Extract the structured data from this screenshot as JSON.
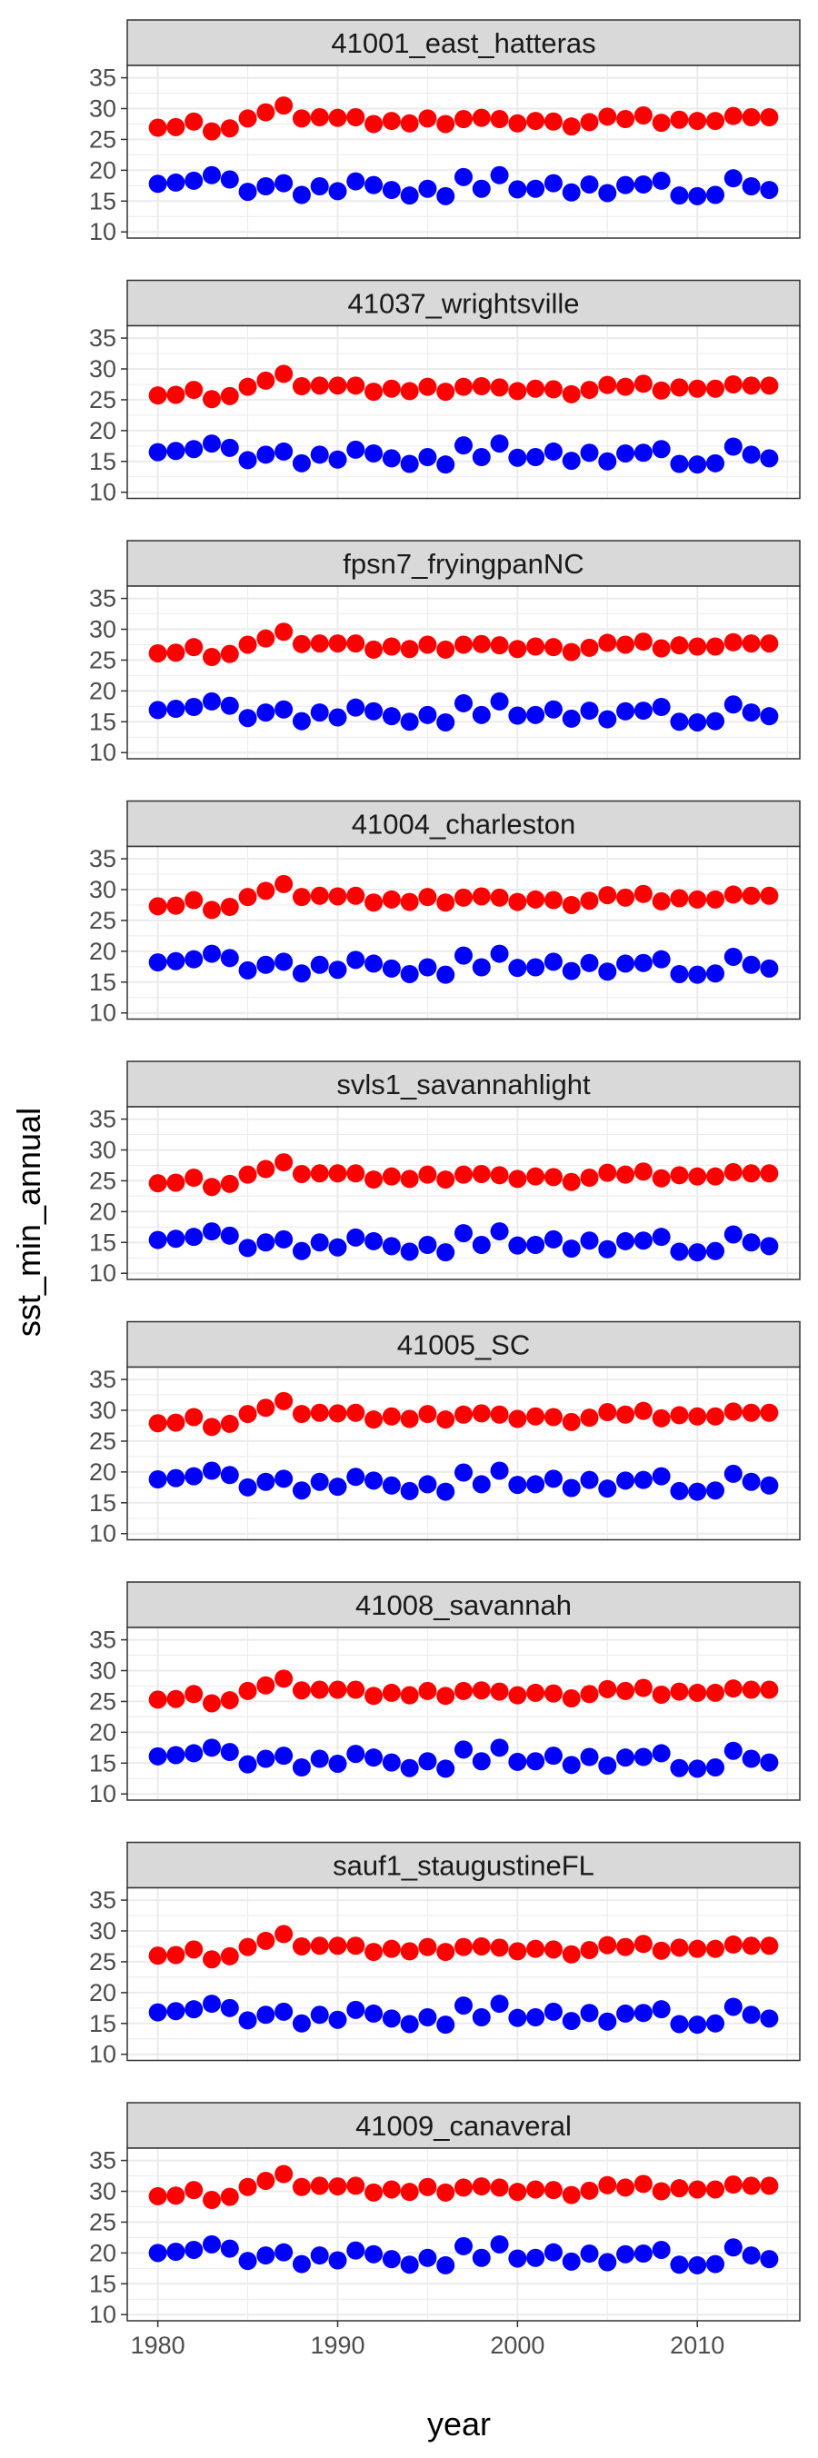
{
  "chart_data": {
    "type": "scatter",
    "xlabel": "year",
    "ylabel": "sst_min_annual",
    "xlim": [
      1978.3,
      2015.7
    ],
    "ylim": [
      9,
      37
    ],
    "x_ticks": [
      1980,
      1990,
      2000,
      2010
    ],
    "y_ticks": [
      10,
      15,
      20,
      25,
      30,
      35
    ],
    "grid": true,
    "legend": "none",
    "colors": {
      "high_series": "#ff0000",
      "low_series": "#0000ff",
      "strip_fill": "#d9d9d9",
      "panel_border": "#333333",
      "grid": "#ebebeb"
    },
    "x": [
      1980,
      1981,
      1982,
      1983,
      1984,
      1985,
      1986,
      1987,
      1988,
      1989,
      1990,
      1991,
      1992,
      1993,
      1994,
      1995,
      1996,
      1997,
      1998,
      1999,
      2000,
      2001,
      2002,
      2003,
      2004,
      2005,
      2006,
      2007,
      2008,
      2009,
      2010,
      2011,
      2012,
      2013,
      2014
    ],
    "panels": [
      {
        "strip": "41001_east_hatteras",
        "high": [
          26.9,
          27.0,
          27.9,
          26.3,
          26.8,
          28.4,
          29.4,
          30.5,
          28.4,
          28.6,
          28.5,
          28.6,
          27.5,
          28.0,
          27.6,
          28.4,
          27.5,
          28.3,
          28.5,
          28.3,
          27.6,
          28.0,
          27.9,
          27.1,
          27.8,
          28.7,
          28.3,
          28.9,
          27.7,
          28.2,
          28.0,
          28.0,
          28.8,
          28.6,
          28.6
        ],
        "low": [
          17.8,
          18.0,
          18.3,
          19.2,
          18.5,
          16.5,
          17.4,
          17.9,
          16.0,
          17.4,
          16.6,
          18.2,
          17.6,
          16.8,
          15.9,
          17.0,
          15.8,
          18.9,
          17.0,
          19.2,
          16.9,
          17.0,
          17.9,
          16.4,
          17.7,
          16.3,
          17.6,
          17.7,
          18.3,
          15.9,
          15.8,
          16.0,
          18.7,
          17.4,
          16.8
        ]
      },
      {
        "strip": "41037_wrightsville",
        "high": [
          25.7,
          25.8,
          26.6,
          25.1,
          25.6,
          27.1,
          28.1,
          29.2,
          27.2,
          27.3,
          27.3,
          27.3,
          26.3,
          26.8,
          26.4,
          27.1,
          26.3,
          27.1,
          27.2,
          27.0,
          26.4,
          26.8,
          26.7,
          25.9,
          26.6,
          27.4,
          27.1,
          27.6,
          26.5,
          27.0,
          26.8,
          26.8,
          27.5,
          27.3,
          27.3
        ],
        "low": [
          16.5,
          16.7,
          17.0,
          17.9,
          17.2,
          15.2,
          16.1,
          16.6,
          14.7,
          16.1,
          15.3,
          16.9,
          16.3,
          15.5,
          14.6,
          15.7,
          14.5,
          17.6,
          15.7,
          17.9,
          15.6,
          15.7,
          16.6,
          15.1,
          16.4,
          15.0,
          16.3,
          16.4,
          17.0,
          14.6,
          14.5,
          14.7,
          17.4,
          16.1,
          15.5
        ]
      },
      {
        "strip": "fpsn7_fryingpanNC",
        "high": [
          26.1,
          26.2,
          27.1,
          25.5,
          26.0,
          27.5,
          28.5,
          29.6,
          27.6,
          27.7,
          27.7,
          27.7,
          26.7,
          27.2,
          26.8,
          27.5,
          26.7,
          27.5,
          27.6,
          27.4,
          26.8,
          27.2,
          27.1,
          26.3,
          27.0,
          27.8,
          27.5,
          28.0,
          26.9,
          27.4,
          27.2,
          27.2,
          27.9,
          27.7,
          27.7
        ],
        "low": [
          16.9,
          17.1,
          17.4,
          18.3,
          17.6,
          15.6,
          16.5,
          17.0,
          15.1,
          16.5,
          15.7,
          17.3,
          16.7,
          15.9,
          15.0,
          16.1,
          14.9,
          18.0,
          16.1,
          18.3,
          16.0,
          16.1,
          17.0,
          15.5,
          16.8,
          15.4,
          16.7,
          16.8,
          17.4,
          15.0,
          14.9,
          15.1,
          17.8,
          16.5,
          15.9
        ]
      },
      {
        "strip": "41004_charleston",
        "high": [
          27.3,
          27.4,
          28.3,
          26.7,
          27.2,
          28.8,
          29.8,
          30.9,
          28.8,
          29.0,
          28.9,
          29.0,
          27.9,
          28.4,
          28.0,
          28.8,
          27.9,
          28.7,
          28.9,
          28.7,
          28.0,
          28.4,
          28.3,
          27.5,
          28.2,
          29.1,
          28.7,
          29.3,
          28.1,
          28.6,
          28.4,
          28.4,
          29.2,
          29.0,
          29.0
        ],
        "low": [
          18.2,
          18.4,
          18.7,
          19.6,
          18.9,
          16.9,
          17.8,
          18.3,
          16.4,
          17.8,
          17.0,
          18.6,
          18.0,
          17.2,
          16.3,
          17.4,
          16.2,
          19.3,
          17.4,
          19.6,
          17.3,
          17.4,
          18.3,
          16.8,
          18.1,
          16.7,
          18.0,
          18.1,
          18.7,
          16.3,
          16.2,
          16.4,
          19.1,
          17.8,
          17.2
        ]
      },
      {
        "strip": "svls1_savannahlight",
        "high": [
          24.6,
          24.7,
          25.5,
          24.0,
          24.5,
          26.0,
          26.9,
          28.0,
          26.1,
          26.2,
          26.2,
          26.2,
          25.2,
          25.7,
          25.3,
          26.0,
          25.2,
          26.0,
          26.1,
          25.9,
          25.3,
          25.7,
          25.6,
          24.8,
          25.5,
          26.3,
          26.0,
          26.5,
          25.4,
          25.9,
          25.7,
          25.7,
          26.4,
          26.2,
          26.2
        ],
        "low": [
          15.4,
          15.6,
          15.9,
          16.8,
          16.1,
          14.1,
          15.0,
          15.5,
          13.6,
          15.0,
          14.2,
          15.8,
          15.2,
          14.4,
          13.5,
          14.6,
          13.4,
          16.5,
          14.6,
          16.8,
          14.5,
          14.6,
          15.5,
          14.0,
          15.3,
          13.9,
          15.2,
          15.3,
          15.9,
          13.5,
          13.4,
          13.6,
          16.3,
          15.0,
          14.4
        ]
      },
      {
        "strip": "41005_SC",
        "high": [
          27.9,
          28.0,
          28.9,
          27.3,
          27.8,
          29.4,
          30.4,
          31.5,
          29.4,
          29.6,
          29.5,
          29.6,
          28.5,
          29.0,
          28.6,
          29.4,
          28.5,
          29.3,
          29.5,
          29.3,
          28.6,
          29.0,
          28.9,
          28.1,
          28.8,
          29.7,
          29.3,
          29.9,
          28.7,
          29.2,
          29.0,
          29.0,
          29.8,
          29.6,
          29.6
        ],
        "low": [
          18.8,
          19.0,
          19.3,
          20.2,
          19.5,
          17.5,
          18.4,
          18.9,
          17.0,
          18.4,
          17.6,
          19.2,
          18.6,
          17.8,
          16.9,
          18.0,
          16.8,
          19.9,
          18.0,
          20.2,
          17.9,
          18.0,
          18.9,
          17.4,
          18.7,
          17.3,
          18.6,
          18.7,
          19.3,
          16.9,
          16.8,
          17.0,
          19.7,
          18.4,
          17.8
        ]
      },
      {
        "strip": "41008_savannah",
        "high": [
          25.3,
          25.4,
          26.2,
          24.7,
          25.2,
          26.7,
          27.6,
          28.7,
          26.8,
          26.9,
          26.9,
          26.9,
          25.9,
          26.4,
          26.0,
          26.7,
          25.9,
          26.7,
          26.8,
          26.6,
          26.0,
          26.4,
          26.3,
          25.5,
          26.2,
          27.0,
          26.7,
          27.2,
          26.1,
          26.6,
          26.4,
          26.4,
          27.1,
          26.9,
          26.9
        ],
        "low": [
          16.1,
          16.3,
          16.6,
          17.5,
          16.8,
          14.8,
          15.7,
          16.2,
          14.3,
          15.7,
          14.9,
          16.5,
          15.9,
          15.1,
          14.2,
          15.3,
          14.1,
          17.2,
          15.3,
          17.5,
          15.2,
          15.3,
          16.2,
          14.7,
          16.0,
          14.6,
          15.9,
          16.0,
          16.6,
          14.2,
          14.1,
          14.3,
          17.0,
          15.7,
          15.1
        ]
      },
      {
        "strip": "sauf1_staugustineFL",
        "high": [
          26.0,
          26.1,
          27.0,
          25.4,
          25.9,
          27.4,
          28.4,
          29.5,
          27.5,
          27.6,
          27.6,
          27.6,
          26.6,
          27.1,
          26.7,
          27.4,
          26.6,
          27.4,
          27.5,
          27.3,
          26.7,
          27.1,
          27.0,
          26.2,
          26.9,
          27.7,
          27.4,
          27.9,
          26.8,
          27.3,
          27.1,
          27.1,
          27.8,
          27.6,
          27.6
        ],
        "low": [
          16.8,
          17.0,
          17.3,
          18.2,
          17.5,
          15.5,
          16.4,
          16.9,
          15.0,
          16.4,
          15.6,
          17.2,
          16.6,
          15.8,
          14.9,
          16.0,
          14.8,
          17.9,
          16.0,
          18.2,
          15.9,
          16.0,
          16.9,
          15.4,
          16.7,
          15.3,
          16.6,
          16.7,
          17.3,
          14.9,
          14.8,
          15.0,
          17.7,
          16.4,
          15.8
        ]
      },
      {
        "strip": "41009_canaveral",
        "high": [
          29.2,
          29.3,
          30.2,
          28.6,
          29.1,
          30.7,
          31.7,
          32.8,
          30.7,
          30.9,
          30.8,
          30.9,
          29.8,
          30.3,
          29.9,
          30.7,
          29.8,
          30.6,
          30.8,
          30.6,
          29.9,
          30.3,
          30.2,
          29.4,
          30.1,
          31.0,
          30.6,
          31.2,
          30.0,
          30.5,
          30.3,
          30.3,
          31.1,
          30.9,
          30.9
        ],
        "low": [
          20.0,
          20.2,
          20.5,
          21.4,
          20.7,
          18.7,
          19.6,
          20.1,
          18.2,
          19.6,
          18.8,
          20.4,
          19.8,
          19.0,
          18.1,
          19.2,
          18.0,
          21.1,
          19.2,
          21.4,
          19.1,
          19.2,
          20.1,
          18.6,
          19.9,
          18.5,
          19.8,
          19.9,
          20.5,
          18.1,
          18.0,
          18.2,
          20.9,
          19.6,
          19.0
        ]
      }
    ]
  }
}
